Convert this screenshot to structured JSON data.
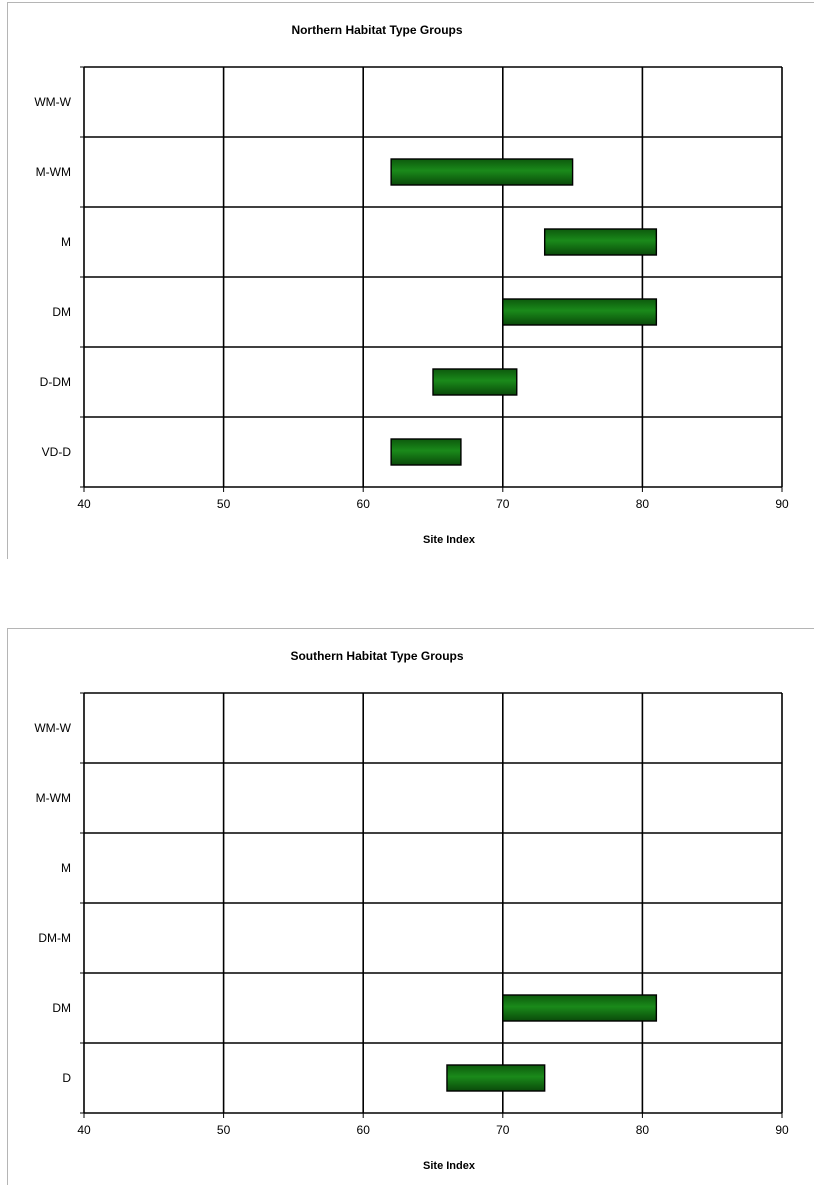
{
  "chart_data": [
    {
      "type": "bar",
      "orientation": "horizontal-range",
      "title": "Northern Habitat Type Groups",
      "xlabel": "Site Index",
      "ylabel": "",
      "xlim": [
        40,
        90
      ],
      "xticks": [
        40,
        50,
        60,
        70,
        80,
        90
      ],
      "grid": true,
      "legend": "none",
      "categories": [
        "WM-W",
        "M-WM",
        "M",
        "DM",
        "D-DM",
        "VD-D"
      ],
      "ranges": [
        null,
        [
          62,
          75
        ],
        [
          73,
          81
        ],
        [
          70,
          81
        ],
        [
          65,
          71
        ],
        [
          62,
          67
        ]
      ],
      "bar_color": "#1a8a1a"
    },
    {
      "type": "bar",
      "orientation": "horizontal-range",
      "title": "Southern Habitat Type Groups",
      "xlabel": "Site Index",
      "ylabel": "",
      "xlim": [
        40,
        90
      ],
      "xticks": [
        40,
        50,
        60,
        70,
        80,
        90
      ],
      "grid": true,
      "legend": "none",
      "categories": [
        "WM-W",
        "M-WM",
        "M",
        "DM-M",
        "DM",
        "D"
      ],
      "ranges": [
        null,
        null,
        null,
        null,
        [
          70,
          81
        ],
        [
          66,
          73
        ]
      ],
      "bar_color": "#1a8a1a"
    }
  ]
}
